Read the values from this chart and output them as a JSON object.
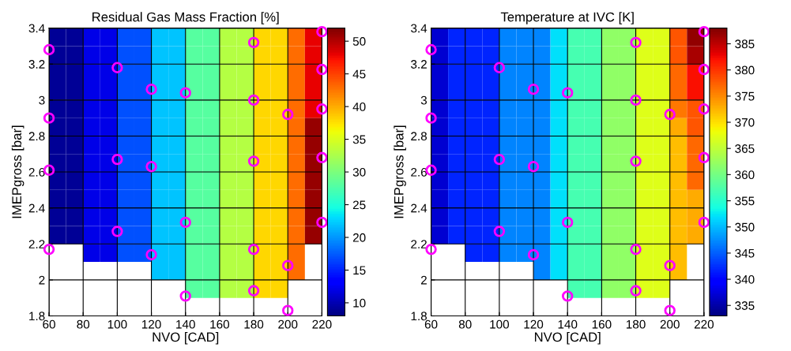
{
  "chart_data": [
    {
      "type": "heatmap",
      "title": "Residual Gas Mass Fraction [%]",
      "xlabel": "NVO [CAD]",
      "ylabel": "IMEPgross [bar]",
      "x": [
        65,
        75,
        85,
        95,
        105,
        115,
        125,
        135,
        145,
        155,
        165,
        175,
        185,
        195,
        205,
        215
      ],
      "y": [
        3.35,
        3.25,
        3.15,
        3.05,
        2.95,
        2.85,
        2.75,
        2.65,
        2.55,
        2.45,
        2.35,
        2.25,
        2.15,
        2.05,
        1.95
      ],
      "cells": [
        [
          9,
          9,
          12,
          12,
          17,
          17,
          22,
          22,
          28,
          28,
          33,
          33,
          38,
          38,
          43,
          48
        ],
        [
          9,
          9,
          12,
          12,
          17,
          17,
          22,
          22,
          28,
          28,
          33,
          33,
          38,
          38,
          43,
          48
        ],
        [
          9,
          9,
          12,
          12,
          17,
          17,
          22,
          22,
          28,
          28,
          33,
          33,
          38,
          38,
          43,
          48
        ],
        [
          9,
          9,
          12,
          12,
          17,
          17,
          22,
          22,
          28,
          28,
          33,
          33,
          38,
          38,
          43,
          48
        ],
        [
          9,
          9,
          12,
          12,
          17,
          17,
          22,
          22,
          28,
          28,
          33,
          33,
          38,
          38,
          43,
          48
        ],
        [
          9,
          9,
          12,
          12,
          17,
          17,
          22,
          22,
          28,
          28,
          33,
          33,
          38,
          38,
          43,
          51
        ],
        [
          9,
          9,
          12,
          12,
          17,
          17,
          22,
          22,
          28,
          28,
          33,
          33,
          38,
          38,
          43,
          51
        ],
        [
          9,
          9,
          12,
          12,
          17,
          17,
          22,
          22,
          28,
          28,
          33,
          33,
          38,
          38,
          43,
          51
        ],
        [
          9,
          9,
          12,
          12,
          17,
          17,
          22,
          22,
          28,
          28,
          33,
          33,
          38,
          38,
          43,
          51
        ],
        [
          9,
          9,
          12,
          12,
          17,
          17,
          22,
          22,
          28,
          28,
          33,
          33,
          38,
          38,
          43,
          51
        ],
        [
          9,
          9,
          12,
          12,
          17,
          17,
          22,
          22,
          28,
          28,
          33,
          33,
          38,
          38,
          43,
          51
        ],
        [
          9,
          9,
          12,
          12,
          17,
          17,
          22,
          22,
          28,
          28,
          33,
          33,
          38,
          38,
          43,
          51
        ],
        [
          null,
          null,
          12,
          12,
          17,
          17,
          22,
          22,
          28,
          28,
          33,
          33,
          38,
          38,
          43,
          null
        ],
        [
          null,
          null,
          null,
          null,
          null,
          null,
          22,
          22,
          28,
          28,
          33,
          33,
          38,
          38,
          43,
          null
        ],
        [
          null,
          null,
          null,
          null,
          null,
          null,
          null,
          null,
          28,
          28,
          33,
          33,
          38,
          38,
          null,
          null
        ]
      ],
      "clim": [
        8,
        52
      ],
      "cticks": [
        10,
        15,
        20,
        25,
        30,
        35,
        40,
        45,
        50
      ],
      "xlim": [
        60,
        220
      ],
      "xticks": [
        60,
        80,
        100,
        120,
        140,
        160,
        180,
        200,
        220
      ],
      "ylim": [
        1.8,
        3.4
      ],
      "yticks": [
        1.8,
        2,
        2.2,
        2.4,
        2.6,
        2.8,
        3,
        3.2,
        3.4
      ],
      "grid": true,
      "marker": "circle",
      "series": [
        {
          "type": "scatter",
          "color": "#ff00ff",
          "x": [
            60,
            60,
            60,
            60,
            100,
            100,
            100,
            120,
            120,
            120,
            140,
            140,
            140,
            180,
            180,
            180,
            180,
            180,
            200,
            200,
            200,
            220,
            220,
            220,
            220,
            220
          ],
          "values": [
            3.28,
            2.9,
            2.61,
            2.17,
            3.18,
            2.67,
            2.27,
            3.06,
            2.63,
            2.14,
            3.04,
            2.32,
            1.91,
            3.32,
            3.0,
            2.66,
            2.17,
            1.94,
            2.92,
            2.08,
            1.83,
            3.38,
            3.17,
            2.95,
            2.68,
            2.32
          ]
        }
      ]
    },
    {
      "type": "heatmap",
      "title": "Temperature at IVC [K]",
      "xlabel": "NVO [CAD]",
      "ylabel": "IMEPgross [bar]",
      "x": [
        65,
        75,
        85,
        95,
        105,
        115,
        125,
        135,
        145,
        155,
        165,
        175,
        185,
        195,
        205,
        215
      ],
      "y": [
        3.35,
        3.25,
        3.15,
        3.05,
        2.95,
        2.85,
        2.75,
        2.65,
        2.55,
        2.45,
        2.35,
        2.25,
        2.15,
        2.05,
        1.95
      ],
      "cells": [
        [
          337,
          342,
          342,
          342,
          347,
          347,
          347,
          352,
          357,
          357,
          362,
          362,
          367,
          367,
          378,
          387
        ],
        [
          337,
          342,
          342,
          342,
          347,
          347,
          347,
          352,
          357,
          357,
          362,
          362,
          367,
          367,
          378,
          386
        ],
        [
          337,
          342,
          342,
          342,
          347,
          347,
          347,
          352,
          357,
          357,
          362,
          362,
          367,
          367,
          377,
          382
        ],
        [
          337,
          342,
          342,
          342,
          347,
          347,
          347,
          352,
          357,
          357,
          362,
          362,
          367,
          367,
          377,
          382
        ],
        [
          337,
          342,
          342,
          342,
          347,
          347,
          347,
          352,
          357,
          357,
          362,
          362,
          367,
          367,
          376,
          378
        ],
        [
          337,
          342,
          342,
          342,
          347,
          347,
          347,
          352,
          357,
          357,
          362,
          362,
          367,
          367,
          373,
          378
        ],
        [
          337,
          342,
          342,
          342,
          347,
          347,
          347,
          352,
          357,
          357,
          362,
          362,
          367,
          367,
          372,
          377
        ],
        [
          337,
          342,
          342,
          342,
          347,
          347,
          347,
          352,
          357,
          357,
          362,
          362,
          367,
          367,
          372,
          377
        ],
        [
          337,
          342,
          342,
          342,
          347,
          347,
          347,
          352,
          357,
          357,
          362,
          362,
          367,
          367,
          372,
          377
        ],
        [
          337,
          342,
          342,
          342,
          347,
          347,
          347,
          352,
          357,
          357,
          362,
          362,
          367,
          367,
          372,
          373
        ],
        [
          337,
          342,
          342,
          342,
          347,
          347,
          347,
          352,
          357,
          357,
          362,
          362,
          367,
          367,
          372,
          373
        ],
        [
          337,
          342,
          342,
          342,
          347,
          347,
          347,
          352,
          357,
          357,
          362,
          362,
          367,
          367,
          372,
          373
        ],
        [
          null,
          null,
          342,
          342,
          347,
          347,
          347,
          352,
          357,
          357,
          362,
          362,
          367,
          367,
          372,
          null
        ],
        [
          null,
          null,
          null,
          null,
          null,
          null,
          347,
          352,
          357,
          357,
          362,
          362,
          367,
          367,
          372,
          null
        ],
        [
          null,
          null,
          null,
          null,
          null,
          null,
          null,
          null,
          357,
          357,
          362,
          362,
          367,
          367,
          null,
          null
        ]
      ],
      "clim": [
        333,
        388
      ],
      "cticks": [
        335,
        340,
        345,
        350,
        355,
        360,
        365,
        370,
        375,
        380,
        385
      ],
      "xlim": [
        60,
        220
      ],
      "xticks": [
        60,
        80,
        100,
        120,
        140,
        160,
        180,
        200,
        220
      ],
      "ylim": [
        1.8,
        3.4
      ],
      "yticks": [
        1.8,
        2,
        2.2,
        2.4,
        2.6,
        2.8,
        3,
        3.2,
        3.4
      ],
      "grid": true,
      "marker": "circle",
      "series": [
        {
          "type": "scatter",
          "color": "#ff00ff",
          "x": [
            60,
            60,
            60,
            60,
            100,
            100,
            100,
            120,
            120,
            120,
            140,
            140,
            140,
            180,
            180,
            180,
            180,
            180,
            200,
            200,
            200,
            220,
            220,
            220,
            220,
            220
          ],
          "values": [
            3.28,
            2.9,
            2.61,
            2.17,
            3.18,
            2.67,
            2.27,
            3.06,
            2.63,
            2.14,
            3.04,
            2.32,
            1.91,
            3.32,
            3.0,
            2.66,
            2.17,
            1.94,
            2.92,
            2.08,
            1.83,
            3.38,
            3.17,
            2.95,
            2.68,
            2.32
          ]
        }
      ]
    }
  ]
}
